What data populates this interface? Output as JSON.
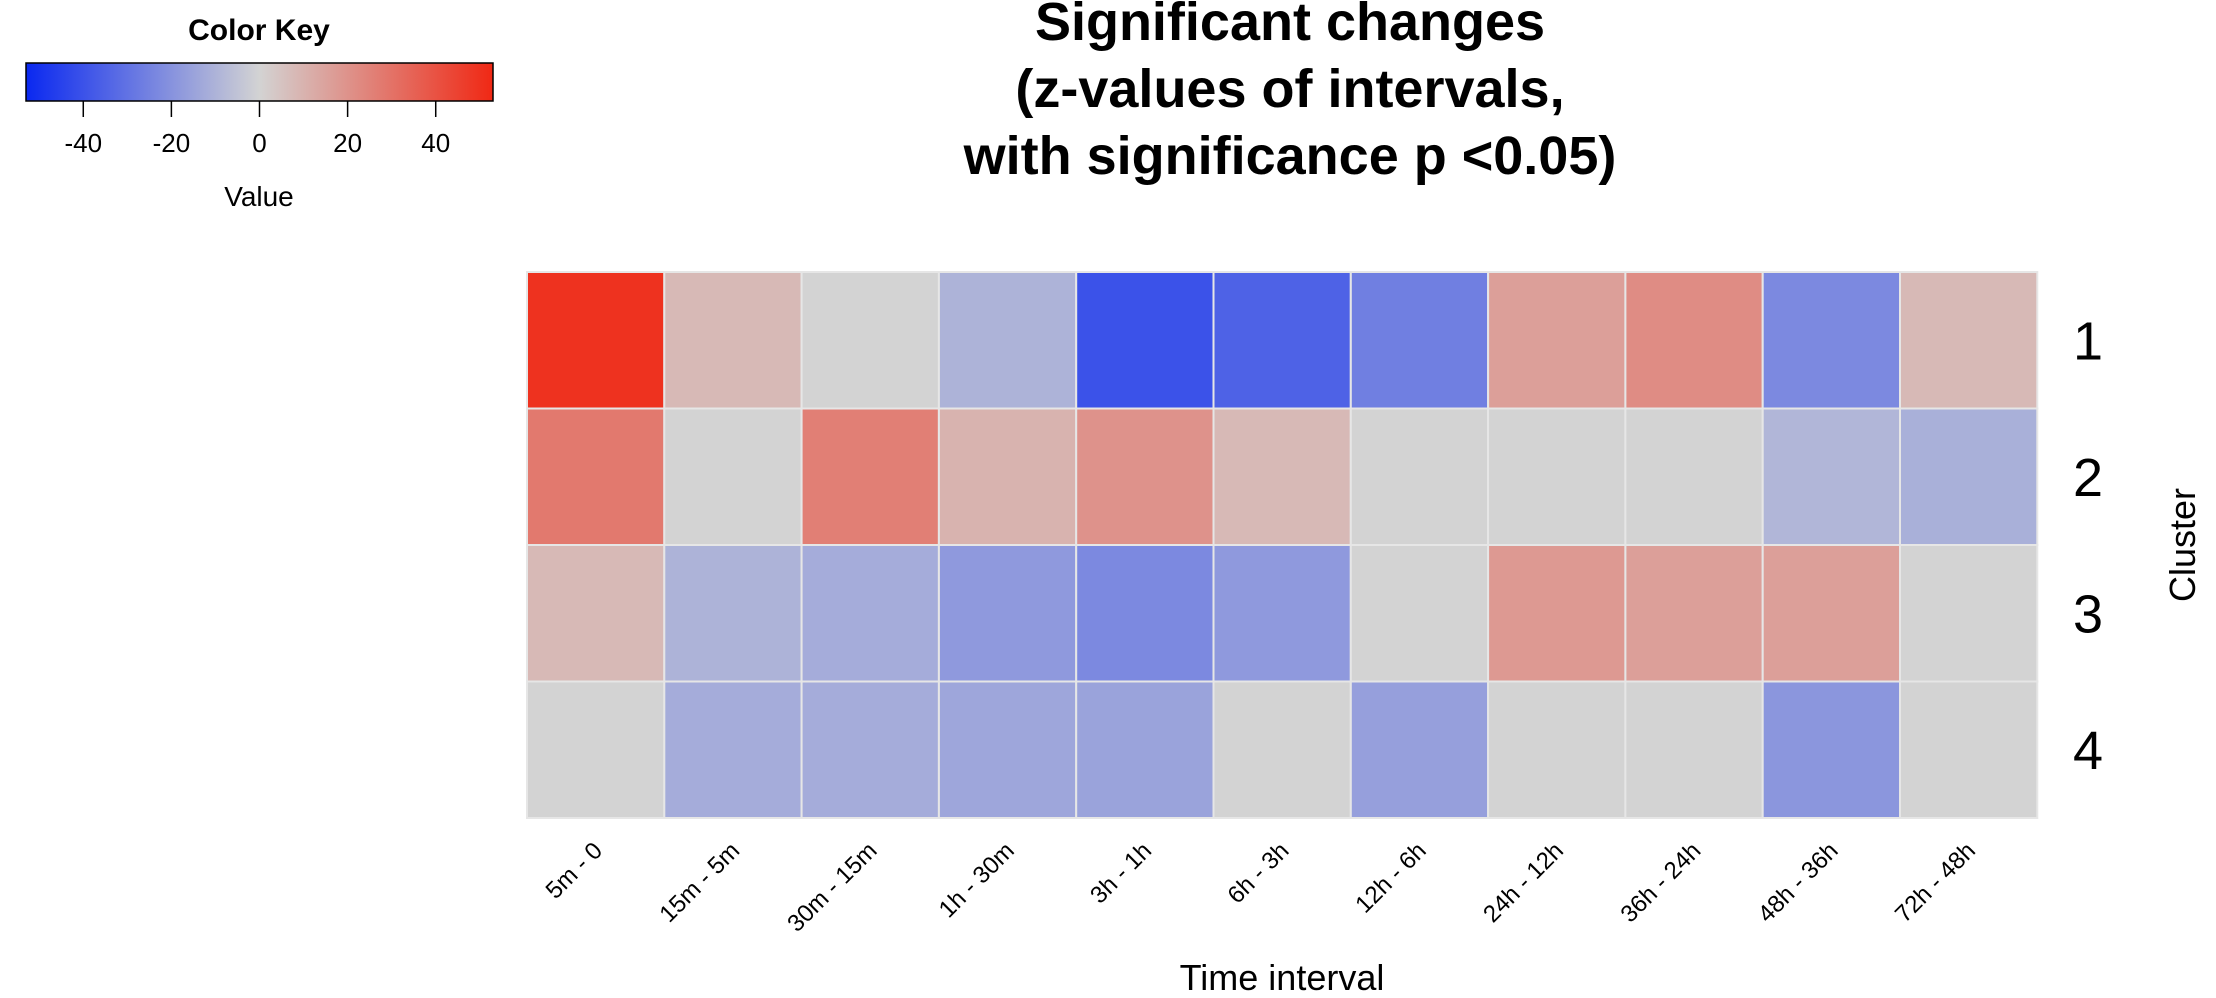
{
  "chart_data": {
    "type": "heatmap",
    "title_lines": [
      "Significant changes",
      "(z-values of intervals,",
      "with significance p <0.05)"
    ],
    "xlabel": "Time interval",
    "ylabel": "Cluster",
    "columns": [
      "5m - 0",
      "15m - 5m",
      "30m - 15m",
      "1h - 30m",
      "3h - 1h",
      "6h - 3h",
      "12h - 6h",
      "24h - 12h",
      "36h - 24h",
      "48h - 36h",
      "72h - 48h"
    ],
    "rows": [
      "1",
      "2",
      "3",
      "4"
    ],
    "values": [
      [
        50,
        8,
        0,
        -10,
        -40,
        -35,
        -26,
        16,
        22,
        -23,
        8
      ],
      [
        28,
        0,
        26,
        10,
        20,
        8,
        0,
        0,
        0,
        -9,
        -11
      ],
      [
        8,
        -10,
        -12,
        -18,
        -23,
        -18,
        0,
        18,
        16,
        16,
        0
      ],
      [
        0,
        -12,
        -12,
        -14,
        -15,
        0,
        -16,
        0,
        0,
        -19,
        0
      ]
    ],
    "color_key": {
      "title": "Color Key",
      "label": "Value",
      "ticks": [
        -40,
        -20,
        0,
        20,
        40
      ],
      "tick_labels": [
        "-40",
        "-20",
        "0",
        "20",
        "40"
      ],
      "range": [
        -53,
        53
      ],
      "low_color": "#0a28f0",
      "mid_color": "#d3d3d3",
      "high_color": "#f02814"
    },
    "grid_color": "#e6e6e6"
  }
}
